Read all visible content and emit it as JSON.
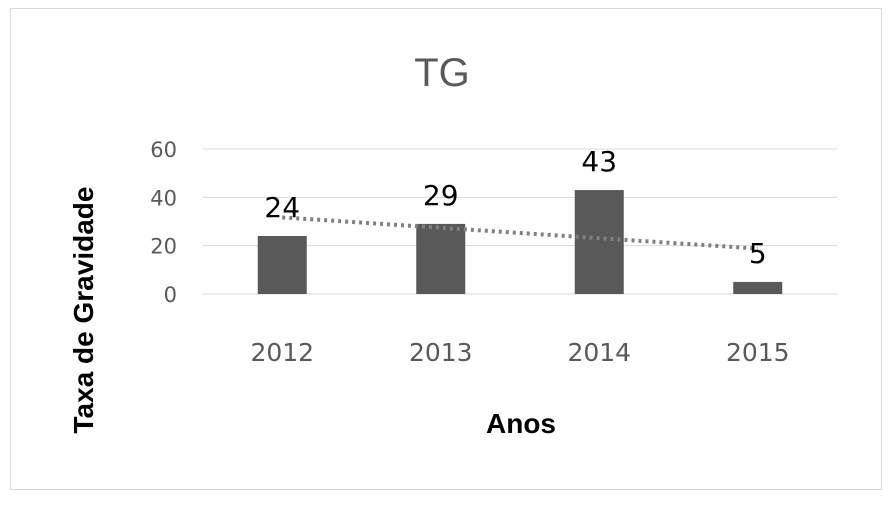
{
  "chart_data": {
    "type": "bar",
    "title": "TG",
    "xlabel": "Anos",
    "ylabel": "Taxa de Gravidade",
    "categories": [
      "2012",
      "2013",
      "2014",
      "2015"
    ],
    "values": [
      24,
      29,
      43,
      5
    ],
    "ylim": [
      0,
      60
    ],
    "yticks": [
      "0",
      "20",
      "40",
      "60"
    ],
    "grid": true,
    "legend": "none",
    "trendline": "linear dotted",
    "bar_color": "#595959",
    "grid_color": "#d9d9d9",
    "trend_color": "#808080"
  }
}
